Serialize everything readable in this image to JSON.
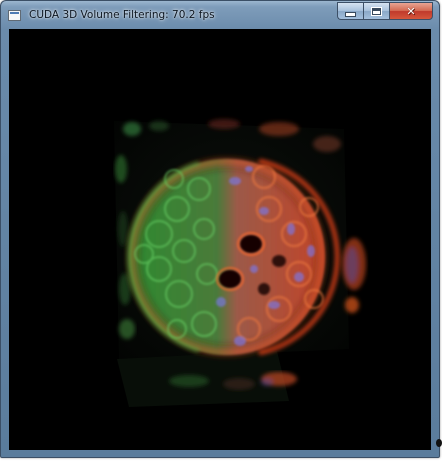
{
  "window": {
    "title": "CUDA 3D Volume Filtering: 70.2 fps",
    "controls": {
      "minimize_icon": "minimize-icon",
      "maximize_icon": "maximize-icon",
      "close_icon": "close-icon",
      "close_glyph": "✕"
    },
    "app_icon": "app-window-icon"
  },
  "render": {
    "description_icon": "volume-render-view",
    "colors": {
      "background": "#000000",
      "green": "#3fbf3f",
      "red": "#e04020",
      "blue": "#6a6ad8"
    }
  }
}
